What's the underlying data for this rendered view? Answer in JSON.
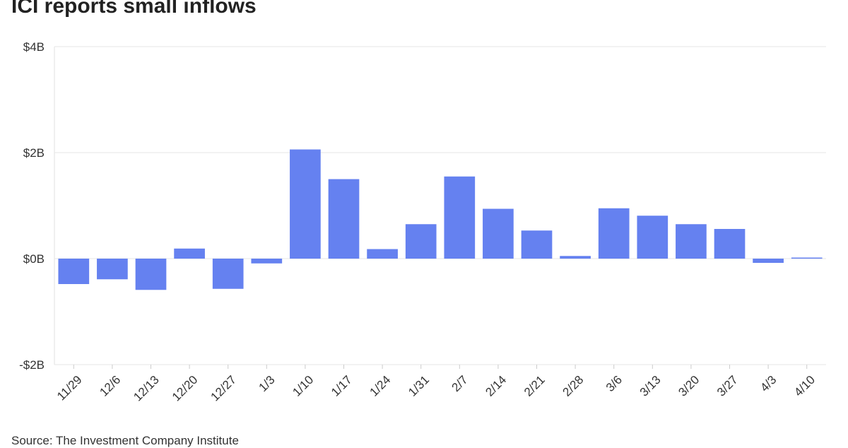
{
  "title": "ICI reports small inflows",
  "source": "Source: The Investment Company Institute",
  "chart_data": {
    "type": "bar",
    "title": "ICI reports small inflows",
    "xlabel": "",
    "ylabel": "",
    "categories": [
      "11/29",
      "12/6",
      "12/13",
      "12/20",
      "12/27",
      "1/3",
      "1/10",
      "1/17",
      "1/24",
      "1/31",
      "2/7",
      "2/14",
      "2/21",
      "2/28",
      "3/6",
      "3/13",
      "3/20",
      "3/27",
      "4/3",
      "4/10"
    ],
    "values": [
      -0.48,
      -0.39,
      -0.59,
      0.19,
      -0.57,
      -0.09,
      2.06,
      1.5,
      0.18,
      0.65,
      1.55,
      0.94,
      0.53,
      0.05,
      0.95,
      0.81,
      0.65,
      0.56,
      -0.08,
      0.02
    ],
    "unit": "billions USD",
    "ylim": [
      -2,
      4
    ],
    "yticks": [
      4,
      2,
      0,
      -2
    ],
    "ytick_labels": [
      "$4B",
      "$2B",
      "$0B",
      "-$2B"
    ],
    "grid": true,
    "bar_color": "#6581f0"
  }
}
